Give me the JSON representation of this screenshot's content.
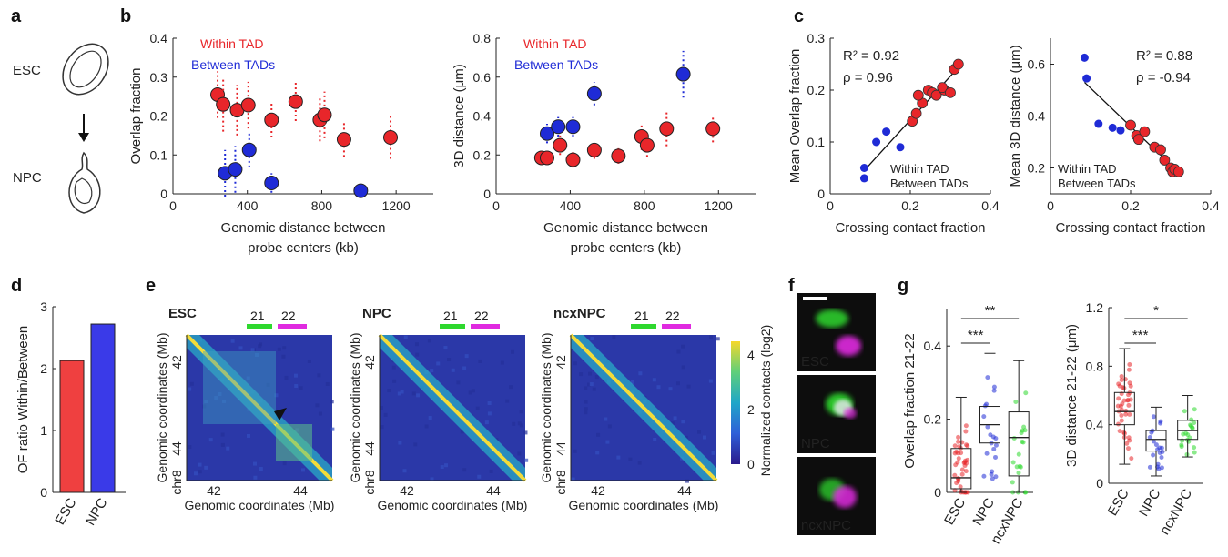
{
  "panel_labels": [
    "a",
    "b",
    "c",
    "d",
    "e",
    "f",
    "g"
  ],
  "colors": {
    "within": "#e8262a",
    "between": "#1f2bd6",
    "bar_esc": "#ef4040",
    "bar_npc": "#3a3ae8",
    "green": "#2ed82e",
    "magenta": "#e02ae0"
  },
  "panel_a": {
    "top_label": "ESC",
    "bottom_label": "NPC"
  },
  "legend": {
    "within": "Within TAD",
    "between": "Between TADs"
  },
  "chart_data": [
    {
      "id": "b1",
      "type": "scatter",
      "xlabel": [
        "Genomic distance between",
        "probe centers (kb)"
      ],
      "ylabel": "Overlap fraction",
      "xlim": [
        0,
        1400
      ],
      "ylim": [
        0,
        0.4
      ],
      "xticks": [
        "0",
        "400",
        "800",
        "1200"
      ],
      "yticks": [
        "0",
        "0.1",
        "0.2",
        "0.3",
        "0.4"
      ],
      "series": [
        {
          "name": "Within TAD",
          "x": [
            240,
            270,
            345,
            405,
            530,
            660,
            790,
            815,
            920,
            1170
          ],
          "y": [
            0.255,
            0.23,
            0.215,
            0.228,
            0.19,
            0.237,
            0.19,
            0.203,
            0.14,
            0.145
          ],
          "err": [
            0.06,
            0.07,
            0.065,
            0.06,
            0.045,
            0.05,
            0.055,
            0.06,
            0.045,
            0.055
          ]
        },
        {
          "name": "Between TADs",
          "x": [
            280,
            335,
            410,
            530,
            1010
          ],
          "y": [
            0.053,
            0.063,
            0.113,
            0.028,
            0.008
          ],
          "err": [
            0.06,
            0.06,
            0.045,
            0.025,
            0.012
          ]
        }
      ]
    },
    {
      "id": "b2",
      "type": "scatter",
      "xlabel": [
        "Genomic distance between",
        "probe centers (kb)"
      ],
      "ylabel": "3D distance (μm)",
      "xlim": [
        0,
        1400
      ],
      "ylim": [
        0,
        0.8
      ],
      "xticks": [
        "0",
        "400",
        "800",
        "1200"
      ],
      "yticks": [
        "0",
        "0.2",
        "0.4",
        "0.6",
        "0.8"
      ],
      "series": [
        {
          "name": "Within TAD",
          "x": [
            245,
            275,
            345,
            415,
            530,
            660,
            785,
            815,
            920,
            1170
          ],
          "y": [
            0.185,
            0.185,
            0.25,
            0.175,
            0.225,
            0.195,
            0.295,
            0.25,
            0.335,
            0.335
          ],
          "err": [
            0.03,
            0.035,
            0.05,
            0.04,
            0.045,
            0.04,
            0.07,
            0.06,
            0.09,
            0.07
          ]
        },
        {
          "name": "Between TADs",
          "x": [
            275,
            335,
            415,
            530,
            1010
          ],
          "y": [
            0.31,
            0.345,
            0.345,
            0.515,
            0.615
          ],
          "err": [
            0.05,
            0.05,
            0.05,
            0.06,
            0.12
          ]
        }
      ]
    },
    {
      "id": "c1",
      "type": "scatter",
      "xlabel": "Crossing contact fraction",
      "ylabel": "Mean Overlap fraction",
      "xlim": [
        0,
        0.4
      ],
      "ylim": [
        0,
        0.3
      ],
      "xticks": [
        "0",
        "0.2",
        "0.4"
      ],
      "yticks": [
        "0",
        "0.1",
        "0.2",
        "0.3"
      ],
      "stats": [
        "R² = 0.92",
        "ρ = 0.96"
      ],
      "series": [
        {
          "name": "Within TAD",
          "x": [
            0.205,
            0.215,
            0.23,
            0.22,
            0.245,
            0.255,
            0.265,
            0.285,
            0.28,
            0.3,
            0.31,
            0.32
          ],
          "y": [
            0.14,
            0.155,
            0.175,
            0.19,
            0.2,
            0.195,
            0.19,
            0.2,
            0.205,
            0.195,
            0.24,
            0.25
          ]
        },
        {
          "name": "Between TADs",
          "x": [
            0.085,
            0.085,
            0.115,
            0.14,
            0.175
          ],
          "y": [
            0.03,
            0.05,
            0.1,
            0.12,
            0.09
          ]
        }
      ],
      "fit": {
        "x": [
          0.085,
          0.325
        ],
        "y": [
          0.045,
          0.248
        ]
      }
    },
    {
      "id": "c2",
      "type": "scatter",
      "xlabel": "Crossing contact fraction",
      "ylabel": "Mean 3D distance (μm)",
      "xlim": [
        0,
        0.4
      ],
      "ylim": [
        0.1,
        0.7
      ],
      "xticks": [
        "0",
        "0.2",
        "0.4"
      ],
      "yticks": [
        "0.2",
        "0.4",
        "0.6"
      ],
      "stats": [
        "R² = 0.88",
        "ρ = -0.94"
      ],
      "series": [
        {
          "name": "Within TAD",
          "x": [
            0.2,
            0.215,
            0.22,
            0.235,
            0.26,
            0.275,
            0.285,
            0.3,
            0.305,
            0.31,
            0.32
          ],
          "y": [
            0.365,
            0.325,
            0.31,
            0.34,
            0.28,
            0.27,
            0.23,
            0.2,
            0.185,
            0.195,
            0.185
          ]
        },
        {
          "name": "Between TADs",
          "x": [
            0.085,
            0.09,
            0.12,
            0.155,
            0.175
          ],
          "y": [
            0.625,
            0.545,
            0.37,
            0.355,
            0.345
          ]
        }
      ],
      "fit": {
        "x": [
          0.085,
          0.325
        ],
        "y": [
          0.53,
          0.175
        ]
      }
    },
    {
      "id": "d",
      "type": "bar",
      "categories": [
        "ESC",
        "NPC"
      ],
      "values": [
        2.13,
        2.72
      ],
      "ylabel": "OF ratio Within/Between",
      "ylim": [
        0,
        3
      ],
      "yticks": [
        "0",
        "1",
        "2",
        "3"
      ]
    },
    {
      "id": "g1",
      "type": "box",
      "categories": [
        "ESC",
        "NPC",
        "ncxNPC"
      ],
      "ylabel": "Overlap fraction 21-22",
      "ylim": [
        0,
        0.5
      ],
      "yticks": [
        "0",
        "0.2",
        "0.4"
      ],
      "boxes": [
        {
          "min": 0,
          "q1": 0.01,
          "median": 0.04,
          "q3": 0.12,
          "max": 0.26
        },
        {
          "min": 0,
          "q1": 0.135,
          "median": 0.185,
          "q3": 0.235,
          "max": 0.38
        },
        {
          "min": 0.0,
          "q1": 0.045,
          "median": 0.15,
          "q3": 0.22,
          "max": 0.36
        }
      ],
      "significance": [
        {
          "pair": [
            0,
            1
          ],
          "label": "***"
        },
        {
          "pair": [
            0,
            2
          ],
          "label": "**"
        }
      ]
    },
    {
      "id": "g2",
      "type": "box",
      "categories": [
        "ESC",
        "NPC",
        "ncxNPC"
      ],
      "ylabel": "3D distance 21-22 (μm)",
      "ylim": [
        0,
        1.2
      ],
      "yticks": [
        "0",
        "0.4",
        "0.8",
        "1.2"
      ],
      "boxes": [
        {
          "min": 0.13,
          "q1": 0.4,
          "median": 0.49,
          "q3": 0.62,
          "max": 0.92
        },
        {
          "min": 0.05,
          "q1": 0.22,
          "median": 0.3,
          "q3": 0.36,
          "max": 0.52
        },
        {
          "min": 0.18,
          "q1": 0.3,
          "median": 0.36,
          "q3": 0.43,
          "max": 0.6
        }
      ],
      "significance": [
        {
          "pair": [
            0,
            1
          ],
          "label": "***"
        },
        {
          "pair": [
            0,
            2
          ],
          "label": "*"
        }
      ]
    }
  ],
  "panel_e": {
    "maps": [
      {
        "title": "ESC"
      },
      {
        "title": "NPC"
      },
      {
        "title": "ncxNPC"
      }
    ],
    "probe_labels": [
      "21",
      "22"
    ],
    "ylabel": "Genomic coordinates (Mb)",
    "xlabel": "Genomic coordinates (Mb)",
    "chrom": "chr8",
    "ticks": [
      "42",
      "44"
    ],
    "colorbar": {
      "label": "Normalized contacts (log2)",
      "ticks": [
        "0",
        "2",
        "4"
      ]
    }
  },
  "panel_f": {
    "labels": [
      "ESC",
      "NPC",
      "ncxNPC"
    ]
  }
}
